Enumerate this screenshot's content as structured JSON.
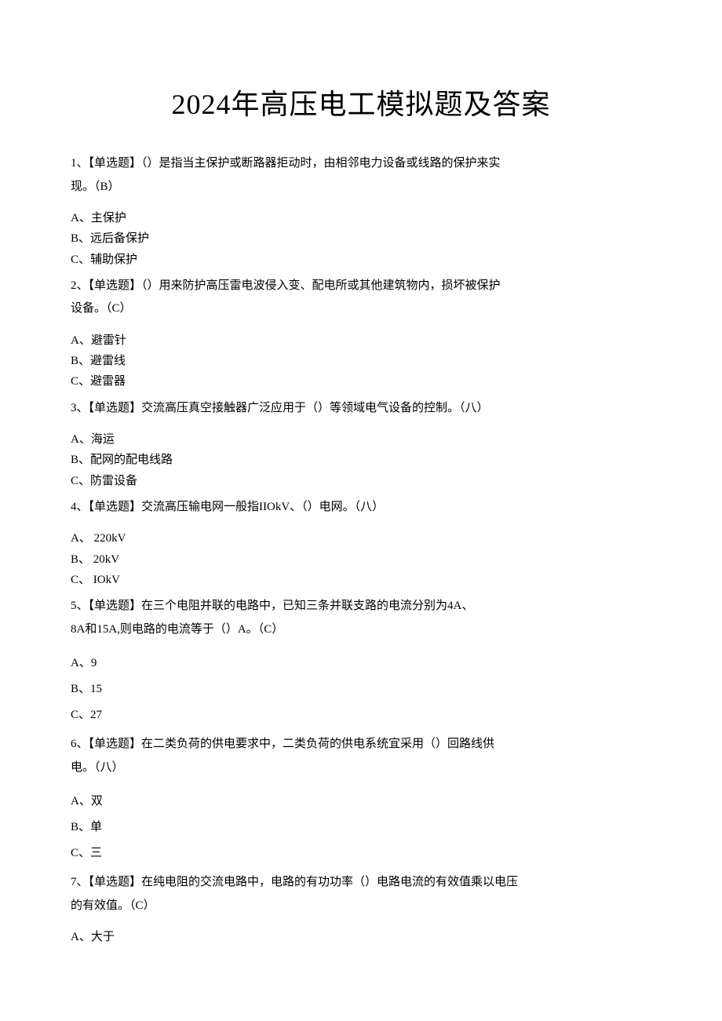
{
  "title": "2024年高压电工模拟题及答案",
  "questions": [
    {
      "num": "1",
      "stem_lines": [
        "1、【单选题】（）是指当主保护或断路器拒动时，由相邻电力设备或线路的保护来实",
        "现。（B）"
      ],
      "options": [
        "A、主保护",
        "B、远后备保护",
        "C、辅助保护"
      ],
      "spaced": false,
      "options_gap": true
    },
    {
      "num": "2",
      "stem_lines": [
        "2、【单选题】（）用来防护高压雷电波侵入变、配电所或其他建筑物内，损坏被保护",
        "设备。（C）"
      ],
      "options": [
        "A、避雷针",
        "B、避雷线",
        "C、避雷器"
      ],
      "spaced": false,
      "options_gap": true
    },
    {
      "num": "3",
      "stem_lines": [
        "3、【单选题】交流高压真空接触器广泛应用于（）等领域电气设备的控制。（八）"
      ],
      "options": [
        "A、海运",
        "B、配网的配电线路",
        "C、防雷设备"
      ],
      "spaced": false,
      "options_gap": true
    },
    {
      "num": "4",
      "stem_lines": [
        "4、【单选题】交流高压输电网一般指IIOkV、（）电网。（八）"
      ],
      "options": [
        "A、 220kV",
        "B、 20kV",
        "C、 IOkV"
      ],
      "spaced": false,
      "options_gap": true
    },
    {
      "num": "5",
      "stem_lines": [
        "5、【单选题】在三个电阻并联的电路中，已知三条并联支路的电流分别为4A、",
        "8A和15A,则电路的电流等于（）A。（C）"
      ],
      "options": [
        "A、9",
        "B、15",
        "C、27"
      ],
      "spaced": true,
      "options_gap": true
    },
    {
      "num": "6",
      "stem_lines": [
        "6、【单选题】在二类负荷的供电要求中，二类负荷的供电系统宜采用（）回路线供",
        "电。（八）"
      ],
      "options": [
        "A、双",
        "B、单",
        "C、三"
      ],
      "spaced": true,
      "options_gap": true
    },
    {
      "num": "7",
      "stem_lines": [
        "7、【单选题】在纯电阻的交流电路中，电路的有功功率（）电路电流的有效值乘以电压",
        "的有效值。（C）"
      ],
      "options": [
        "A、大于"
      ],
      "spaced": false,
      "options_gap": true
    }
  ]
}
